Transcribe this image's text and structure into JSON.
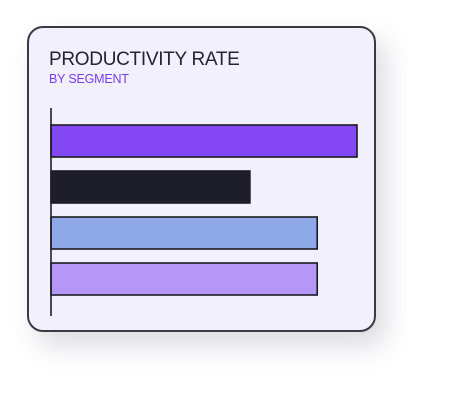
{
  "card": {
    "title": "PRODUCTIVITY RATE",
    "subtitle": "BY SEGMENT"
  },
  "colors": {
    "card_background": "#f1f0fc",
    "card_border": "#3a3a44",
    "title": "#25232f",
    "subtitle": "#7a3dea",
    "axis": "#1e1e24"
  },
  "chart_data": {
    "type": "bar",
    "orientation": "horizontal",
    "title": "PRODUCTIVITY RATE",
    "subtitle": "BY SEGMENT",
    "xlabel": "",
    "ylabel": "",
    "xlim": [
      0,
      100
    ],
    "grid": false,
    "legend": "none",
    "categories": [
      "",
      "",
      "",
      ""
    ],
    "values": [
      100,
      65,
      87,
      87
    ],
    "bar_colors": [
      "#8447f4",
      "#1e1e28",
      "#8ea8e8",
      "#b597f8"
    ]
  }
}
